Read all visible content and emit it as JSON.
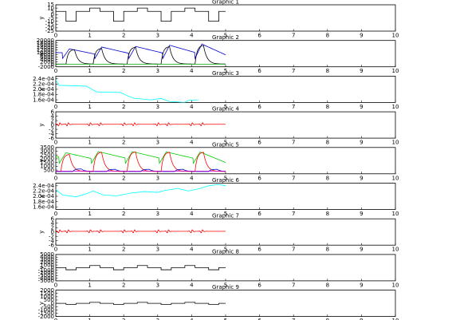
{
  "chart_data": [
    {
      "type": "line",
      "title": "Graphic 1",
      "ylabel": "y",
      "xlim": [
        0,
        10
      ],
      "ylim": [
        -25,
        15
      ],
      "xticks": [
        0,
        1,
        2,
        3,
        4,
        5,
        6,
        7,
        8,
        9,
        10
      ],
      "yticks": [
        -25,
        -20,
        -15,
        -10,
        -5,
        0,
        5,
        10,
        15
      ],
      "series": [
        {
          "color": "#000000",
          "shape": "square",
          "params": {
            "base": 5,
            "low": -10,
            "high": 10,
            "period": 0.7,
            "starts": [
              0.3,
              1.0,
              1.7,
              2.4,
              3.1,
              3.8,
              4.5
            ],
            "durs": [
              0.3,
              0.3,
              0.3,
              0.3,
              0.3,
              0.3,
              0.3
            ],
            "levels": [
              -10,
              10,
              -10,
              10,
              -10,
              10,
              -10
            ]
          }
        }
      ]
    },
    {
      "type": "line",
      "title": "Graphic 2",
      "ylabel": "y",
      "xlim": [
        0,
        10
      ],
      "ylim": [
        -2000,
        20000
      ],
      "xticks": [
        0,
        1,
        2,
        3,
        4,
        5,
        6,
        7,
        8,
        9,
        10
      ],
      "yticks": [
        -2000,
        0,
        2000,
        4000,
        6000,
        8000,
        10000,
        12000,
        14000,
        16000,
        18000,
        20000
      ],
      "series": [
        {
          "color": "#0000cc",
          "shape": "saw",
          "params": {
            "base": 5000,
            "peaks": [
              13000,
              14500,
              15000,
              16000,
              17000
            ],
            "starts": [
              0.2,
              1.15,
              2.15,
              3.15,
              4.1
            ],
            "end": 5.0,
            "end_val": 8000
          }
        },
        {
          "color": "#000000",
          "shape": "pulse",
          "params": {
            "base": 300,
            "peaks": [
              12500,
              13500,
              14500,
              15000,
              16000
            ],
            "starts": [
              0.3,
              1.1,
              2.1,
              3.1,
              4.1
            ]
          }
        },
        {
          "color": "#00aa00",
          "shape": "flat",
          "params": {
            "value": 200
          }
        }
      ]
    },
    {
      "type": "line",
      "title": "Graphic 3",
      "ylabel": "y",
      "xlim": [
        0,
        10
      ],
      "ylim": [
        0.00015,
        0.00025
      ],
      "xticks": [
        0,
        1,
        2,
        3,
        4,
        5,
        6,
        7,
        8,
        9,
        10
      ],
      "yticks": [
        "1.6e-04",
        "1.8e-04",
        "2.0e-04",
        "2.2e-04",
        "2.4e-04"
      ],
      "ytick_values": [
        0.00016,
        0.00018,
        0.0002,
        0.00022,
        0.00024
      ],
      "series": [
        {
          "color": "#00ffff",
          "shape": "steps",
          "params": {
            "points": [
              [
                0,
                0.000235
              ],
              [
                0.1,
                0.000215
              ],
              [
                0.9,
                0.000212
              ],
              [
                1.2,
                0.00019
              ],
              [
                1.9,
                0.000188
              ],
              [
                2.1,
                0.000176
              ],
              [
                2.3,
                0.000166
              ],
              [
                2.8,
                0.00016
              ],
              [
                3.1,
                0.000165
              ],
              [
                3.4,
                0.000152
              ],
              [
                3.5,
                0.000153
              ],
              [
                3.8,
                0.00015
              ],
              [
                3.9,
                0.000158
              ],
              [
                4.2,
                0.00016
              ]
            ]
          }
        }
      ]
    },
    {
      "type": "line",
      "title": "Graphic 4",
      "ylabel": "y",
      "xlim": [
        0,
        10
      ],
      "ylim": [
        -6,
        6
      ],
      "xticks": [
        0,
        1,
        2,
        3,
        4,
        5,
        6,
        7,
        8,
        9,
        10
      ],
      "yticks": [
        -6,
        -4,
        -2,
        0,
        2,
        4,
        6
      ],
      "series": [
        {
          "color": "#ff0000",
          "shape": "spikes",
          "params": {
            "base": 0.3,
            "amp": 1.2,
            "centers": [
              0.1,
              0.35,
              1.0,
              1.3,
              2.0,
              2.3,
              3.0,
              3.3,
              4.0,
              4.3
            ]
          }
        }
      ]
    },
    {
      "type": "line",
      "title": "Graphic 5",
      "ylabel": "y",
      "xlim": [
        0,
        10
      ],
      "ylim": [
        0,
        3500
      ],
      "xticks": [
        0,
        1,
        2,
        3,
        4,
        5,
        6,
        7,
        8,
        9,
        10
      ],
      "yticks": [
        500,
        1000,
        1500,
        2000,
        2500,
        3000,
        3500
      ],
      "series": [
        {
          "color": "#00cc00",
          "shape": "saw",
          "params": {
            "base": 1400,
            "peaks": [
              2800,
              2950,
              2950,
              2900,
              2900
            ],
            "starts": [
              0.1,
              1.05,
              2.05,
              3.05,
              4.05
            ],
            "end": 5.0,
            "end_val": 1500
          }
        },
        {
          "color": "#ff0000",
          "shape": "pulse",
          "params": {
            "base": 300,
            "peaks": [
              2600,
              2900,
              2950,
              2900,
              2900
            ],
            "starts": [
              0.15,
              1.1,
              2.1,
              3.1,
              4.1
            ]
          }
        },
        {
          "color": "#0000cc",
          "shape": "pulse",
          "params": {
            "base": 300,
            "peaks": [
              650,
              600,
              600,
              600,
              600
            ],
            "starts": [
              0.5,
              1.5,
              2.5,
              3.5,
              4.5
            ]
          }
        },
        {
          "color": "#cc00cc",
          "shape": "flat",
          "params": {
            "value": 350
          }
        }
      ]
    },
    {
      "type": "line",
      "title": "Graphic 6",
      "ylabel": "y",
      "xlim": [
        0,
        10
      ],
      "ylim": [
        0.00015,
        0.00025
      ],
      "xticks": [
        0,
        1,
        2,
        3,
        4,
        5,
        6,
        7,
        8,
        9,
        10
      ],
      "yticks": [
        "1.6e-04",
        "1.8e-04",
        "2.0e-04",
        "2.2e-04",
        "2.4e-04"
      ],
      "ytick_values": [
        0.00016,
        0.00018,
        0.0002,
        0.00022,
        0.00024
      ],
      "series": [
        {
          "color": "#00ffff",
          "shape": "steps",
          "params": {
            "points": [
              [
                0,
                0.000225
              ],
              [
                0.2,
                0.000205
              ],
              [
                0.6,
                0.000198
              ],
              [
                0.9,
                0.00021
              ],
              [
                1.1,
                0.00022
              ],
              [
                1.4,
                0.000205
              ],
              [
                1.8,
                0.000202
              ],
              [
                2.2,
                0.000212
              ],
              [
                2.6,
                0.000218
              ],
              [
                3.0,
                0.000215
              ],
              [
                3.2,
                0.000222
              ],
              [
                3.6,
                0.00023
              ],
              [
                3.9,
                0.00022
              ],
              [
                4.2,
                0.000228
              ],
              [
                4.5,
                0.00024
              ],
              [
                4.8,
                0.000245
              ],
              [
                5.0,
                0.00024
              ]
            ]
          }
        }
      ]
    },
    {
      "type": "line",
      "title": "Graphic 7",
      "ylabel": "y",
      "xlim": [
        0,
        10
      ],
      "ylim": [
        -6,
        6
      ],
      "xticks": [
        0,
        1,
        2,
        3,
        4,
        5,
        6,
        7,
        8,
        9,
        10
      ],
      "yticks": [
        -6,
        -4,
        -2,
        0,
        2,
        4,
        6
      ],
      "series": [
        {
          "color": "#ff0000",
          "shape": "spikes",
          "params": {
            "base": 0.3,
            "amp": 1.2,
            "centers": [
              0.1,
              0.35,
              1.0,
              1.3,
              2.0,
              2.3,
              3.0,
              3.3,
              4.0,
              4.3
            ]
          }
        }
      ]
    },
    {
      "type": "line",
      "title": "Graphic 8",
      "ylabel": "y",
      "xlim": [
        0,
        10
      ],
      "ylim": [
        -5000,
        5000
      ],
      "xticks": [
        0,
        1,
        2,
        3,
        4,
        5,
        6,
        7,
        8,
        9,
        10
      ],
      "yticks": [
        -5000,
        -4000,
        -3000,
        -2000,
        -1000,
        0,
        1000,
        2000,
        3000,
        4000,
        5000
      ],
      "series": [
        {
          "color": "#000000",
          "shape": "square",
          "params": {
            "base": 0,
            "period": 0,
            "starts": [
              0.3,
              1.0,
              1.7,
              2.4,
              3.1,
              3.8,
              4.5
            ],
            "durs": [
              0.3,
              0.3,
              0.3,
              0.3,
              0.3,
              0.3,
              0.3
            ],
            "levels": [
              -800,
              800,
              -800,
              800,
              -800,
              800,
              -800
            ]
          }
        }
      ]
    },
    {
      "type": "line",
      "title": "Graphic 9",
      "ylabel": "y",
      "xlim": [
        0,
        10
      ],
      "ylim": [
        -2000,
        2000
      ],
      "xticks": [
        0,
        1,
        2,
        3,
        4,
        5,
        6,
        7,
        8,
        9,
        10
      ],
      "yticks": [
        -2000,
        -1500,
        -1000,
        -500,
        0,
        500,
        1000,
        1500,
        2000
      ],
      "series": [
        {
          "color": "#000000",
          "shape": "square",
          "params": {
            "base": 0,
            "period": 0,
            "starts": [
              0.3,
              1.0,
              1.7,
              2.4,
              3.1,
              3.8,
              4.5
            ],
            "durs": [
              0.3,
              0.3,
              0.3,
              0.3,
              0.3,
              0.3,
              0.3
            ],
            "levels": [
              -150,
              150,
              -150,
              150,
              -150,
              150,
              -150
            ]
          }
        }
      ]
    }
  ]
}
